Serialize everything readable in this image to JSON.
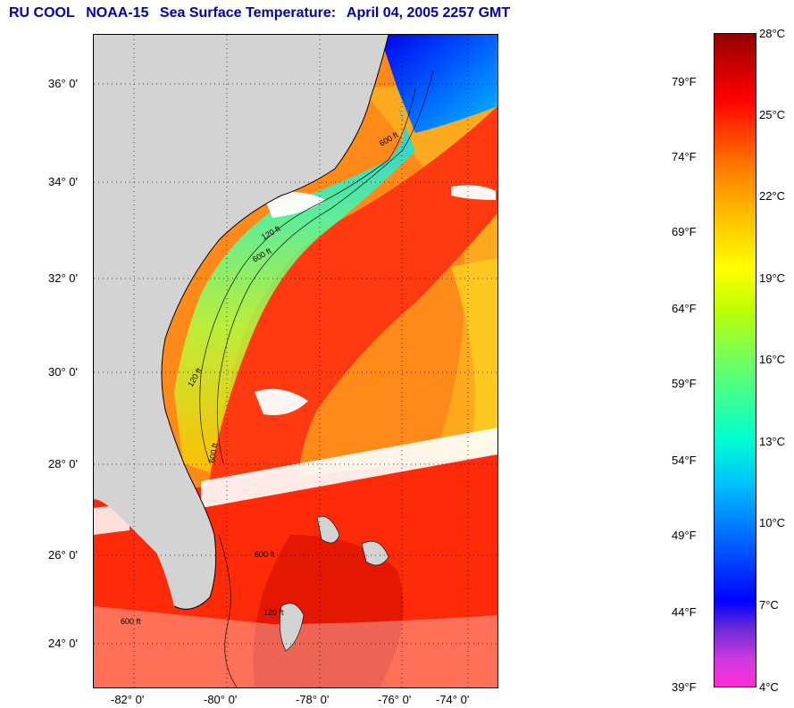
{
  "title": {
    "org": "RU COOL",
    "satellite": "NOAA-15",
    "product": "Sea Surface Temperature:",
    "datetime": "April 04, 2005 2257 GMT"
  },
  "map": {
    "lat_labels": [
      "36° 0'",
      "34° 0'",
      "32° 0'",
      "30° 0'",
      "28° 0'",
      "26° 0'",
      "24° 0'"
    ],
    "lon_labels": [
      "-82° 0'",
      "-80° 0'",
      "-78° 0'",
      "-76° 0'",
      "-74° 0'"
    ],
    "contour_labels": [
      "600 ft",
      "120 ft",
      "600 ft",
      "120 ft",
      "600 ft",
      "600 ft",
      "600 ft",
      "120 ft"
    ],
    "colors": {
      "land": "#d3d3d3",
      "cloud": "#ffffff",
      "gulf_stream": "#ff3000",
      "offshore": "#ff7a10"
    }
  },
  "colorbar": {
    "fahrenheit": [
      "79°F",
      "74°F",
      "69°F",
      "64°F",
      "59°F",
      "54°F",
      "49°F",
      "44°F",
      "39°F"
    ],
    "celsius": [
      "28°C",
      "25°C",
      "22°C",
      "19°C",
      "16°C",
      "13°C",
      "10°C",
      "7°C",
      "4°C"
    ],
    "range_c": [
      4,
      28
    ]
  }
}
